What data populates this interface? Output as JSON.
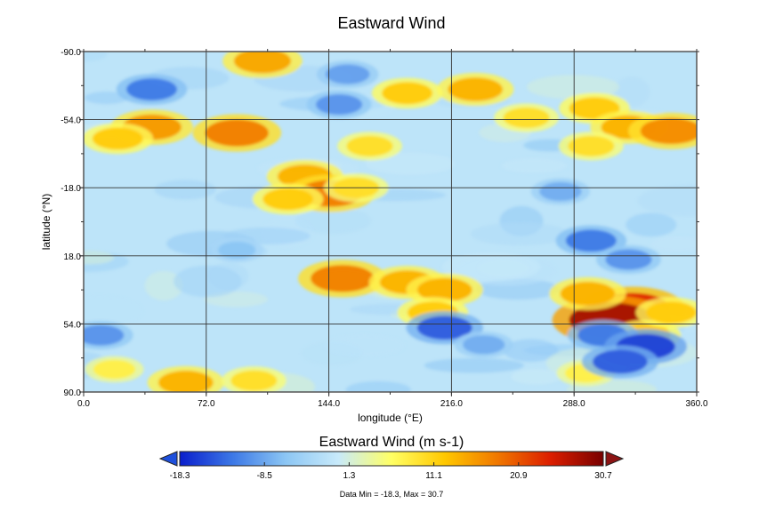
{
  "chart_data": {
    "type": "heatmap",
    "title": "Eastward Wind",
    "xlabel": "longitude (°E)",
    "ylabel": "latitude (°N)",
    "xlim": [
      0.0,
      360.0
    ],
    "ylim": [
      -90.0,
      90.0
    ],
    "y_axis_inverted": true,
    "grid": true,
    "x_ticks": [
      "0.0",
      "72.0",
      "144.0",
      "216.0",
      "288.0",
      "360.0"
    ],
    "y_ticks": [
      "-90.0",
      "-54.0",
      "-18.0",
      "18.0",
      "54.0",
      "90.0"
    ],
    "colorbar": {
      "title": "Eastward Wind (m s-1)",
      "ticks": [
        "-18.3",
        "-8.5",
        "1.3",
        "11.1",
        "20.9",
        "30.7"
      ],
      "min": -18.3,
      "max": 30.7,
      "colors": [
        "#0a1ecc",
        "#3c78e6",
        "#8cc6f4",
        "#c8eafa",
        "#ffff64",
        "#ffc800",
        "#f07800",
        "#dc1e00",
        "#780000"
      ],
      "extend_colors": {
        "low": "#1e50dc",
        "high": "#8c1414"
      }
    },
    "footer": "Data Min = -18.3, Max = 30.7",
    "features": [
      {
        "lon": 105,
        "lat": -85,
        "value": 15
      },
      {
        "lon": 230,
        "lat": -70,
        "value": 14
      },
      {
        "lon": 190,
        "lat": -68,
        "value": 12
      },
      {
        "lon": 300,
        "lat": -60,
        "value": 12
      },
      {
        "lon": 40,
        "lat": -50,
        "value": 16
      },
      {
        "lon": 90,
        "lat": -47,
        "value": 18
      },
      {
        "lon": 20,
        "lat": -44,
        "value": 12
      },
      {
        "lon": 320,
        "lat": -50,
        "value": 14
      },
      {
        "lon": 345,
        "lat": -48,
        "value": 17
      },
      {
        "lon": 298,
        "lat": -40,
        "value": 10
      },
      {
        "lon": 260,
        "lat": -55,
        "value": 10
      },
      {
        "lon": 130,
        "lat": -24,
        "value": 14
      },
      {
        "lon": 145,
        "lat": -15,
        "value": 18
      },
      {
        "lon": 120,
        "lat": -12,
        "value": 12
      },
      {
        "lon": 168,
        "lat": -40,
        "value": 10
      },
      {
        "lon": 160,
        "lat": -18,
        "value": 10
      },
      {
        "lon": 152,
        "lat": 30,
        "value": 18
      },
      {
        "lon": 190,
        "lat": 32,
        "value": 14
      },
      {
        "lon": 212,
        "lat": 36,
        "value": 14
      },
      {
        "lon": 205,
        "lat": 48,
        "value": 12
      },
      {
        "lon": 322,
        "lat": 46,
        "value": 24
      },
      {
        "lon": 310,
        "lat": 52,
        "value": 28
      },
      {
        "lon": 296,
        "lat": 38,
        "value": 14
      },
      {
        "lon": 330,
        "lat": 60,
        "value": 12
      },
      {
        "lon": 60,
        "lat": 85,
        "value": 14
      },
      {
        "lon": 100,
        "lat": 84,
        "value": 10
      },
      {
        "lon": 18,
        "lat": 78,
        "value": 8
      },
      {
        "lon": 295,
        "lat": 80,
        "value": 8
      },
      {
        "lon": 345,
        "lat": 48,
        "value": 12
      },
      {
        "lon": 212,
        "lat": 56,
        "value": -14
      },
      {
        "lon": 305,
        "lat": 60,
        "value": -12
      },
      {
        "lon": 330,
        "lat": 66,
        "value": -16
      },
      {
        "lon": 315,
        "lat": 74,
        "value": -14
      },
      {
        "lon": 40,
        "lat": -70,
        "value": -12
      },
      {
        "lon": 150,
        "lat": -62,
        "value": -10
      },
      {
        "lon": 155,
        "lat": -78,
        "value": -9
      },
      {
        "lon": 298,
        "lat": 10,
        "value": -12
      },
      {
        "lon": 320,
        "lat": 20,
        "value": -10
      },
      {
        "lon": 280,
        "lat": -16,
        "value": -8
      },
      {
        "lon": 10,
        "lat": 60,
        "value": -10
      },
      {
        "lon": 235,
        "lat": 65,
        "value": -8
      },
      {
        "lon": 90,
        "lat": 15,
        "value": -6
      }
    ]
  }
}
